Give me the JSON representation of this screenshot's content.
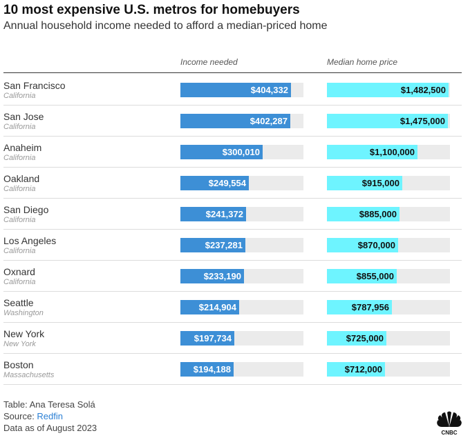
{
  "header": {
    "title": "10 most expensive U.S. metros for homebuyers",
    "subtitle": "Annual household income needed to afford a median-priced home"
  },
  "chart_data": {
    "type": "bar",
    "orientation": "horizontal",
    "columns": [
      {
        "key": "income",
        "label": "Income needed",
        "max": 450000,
        "color": "#3d8fd6"
      },
      {
        "key": "price",
        "label": "Median home price",
        "max": 1500000,
        "color": "#6ef4ff"
      }
    ],
    "rows": [
      {
        "city": "San Francisco",
        "state": "California",
        "income": 404332,
        "income_label": "$404,332",
        "price": 1482500,
        "price_label": "$1,482,500"
      },
      {
        "city": "San Jose",
        "state": "California",
        "income": 402287,
        "income_label": "$402,287",
        "price": 1475000,
        "price_label": "$1,475,000"
      },
      {
        "city": "Anaheim",
        "state": "California",
        "income": 300010,
        "income_label": "$300,010",
        "price": 1100000,
        "price_label": "$1,100,000"
      },
      {
        "city": "Oakland",
        "state": "California",
        "income": 249554,
        "income_label": "$249,554",
        "price": 915000,
        "price_label": "$915,000"
      },
      {
        "city": "San Diego",
        "state": "California",
        "income": 241372,
        "income_label": "$241,372",
        "price": 885000,
        "price_label": "$885,000"
      },
      {
        "city": "Los Angeles",
        "state": "California",
        "income": 237281,
        "income_label": "$237,281",
        "price": 870000,
        "price_label": "$870,000"
      },
      {
        "city": "Oxnard",
        "state": "California",
        "income": 233190,
        "income_label": "$233,190",
        "price": 855000,
        "price_label": "$855,000"
      },
      {
        "city": "Seattle",
        "state": "Washington",
        "income": 214904,
        "income_label": "$214,904",
        "price": 787956,
        "price_label": "$787,956"
      },
      {
        "city": "New York",
        "state": "New York",
        "income": 197734,
        "income_label": "$197,734",
        "price": 725000,
        "price_label": "$725,000"
      },
      {
        "city": "Boston",
        "state": "Massachusetts",
        "income": 194188,
        "income_label": "$194,188",
        "price": 712000,
        "price_label": "$712,000"
      }
    ]
  },
  "footer": {
    "table_credit": "Table: Ana Teresa Solá",
    "source_prefix": "Source: ",
    "source_name": "Redfin",
    "data_date": "Data as of August 2023"
  },
  "logo": {
    "name": "CNBC"
  }
}
